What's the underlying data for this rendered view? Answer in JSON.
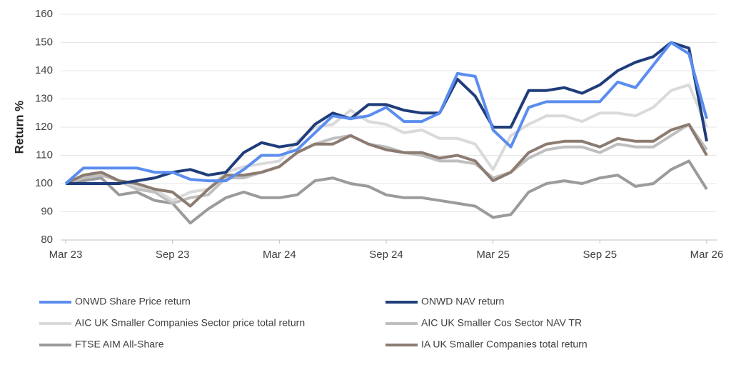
{
  "chart_data": {
    "type": "line",
    "y_label": "Return %",
    "categories": [
      "Mar 23",
      null,
      null,
      null,
      null,
      null,
      "Sep 23",
      null,
      null,
      null,
      null,
      null,
      "Mar 24",
      null,
      null,
      null,
      null,
      null,
      "Sep 24",
      null,
      null,
      null,
      null,
      null,
      "Mar 25",
      null,
      null,
      null,
      null,
      null,
      "Sep 25",
      null,
      null,
      null,
      null,
      null,
      "Mar 26"
    ],
    "ylim": [
      80,
      160
    ],
    "yticks": [
      80,
      90,
      100,
      110,
      120,
      130,
      140,
      150,
      160
    ],
    "grid": true,
    "series": [
      {
        "name": "ONWD Share Price return",
        "color": "#5b8def",
        "values": [
          100,
          105.5,
          105.5,
          105.5,
          105.5,
          104,
          104,
          101.5,
          101,
          101,
          105,
          110,
          110,
          112,
          118,
          124,
          123,
          124,
          127,
          122,
          122,
          125,
          139,
          138,
          119,
          113,
          127,
          129,
          129,
          129,
          129,
          136,
          134,
          142,
          150,
          146,
          123
        ]
      },
      {
        "name": "ONWD NAV return",
        "color": "#1f3d7a",
        "values": [
          100,
          100,
          100,
          100,
          101,
          102,
          104,
          105,
          103,
          104,
          111,
          114.5,
          113,
          114,
          121,
          125,
          123,
          128,
          128,
          126,
          125,
          125,
          137,
          131,
          120,
          120,
          133,
          133,
          134,
          132,
          135,
          140,
          143,
          145,
          150,
          148,
          115
        ]
      },
      {
        "name": "AIC UK Smaller Companies Sector price total return",
        "color": "#dadada",
        "values": [
          100,
          103,
          104,
          101,
          99,
          98,
          94,
          97,
          98,
          104,
          106,
          107,
          108,
          115,
          120,
          121,
          126,
          122,
          121,
          118,
          119,
          116,
          116,
          114,
          105,
          117,
          121,
          124,
          124,
          122,
          125,
          125,
          124,
          127,
          133,
          135,
          120
        ]
      },
      {
        "name": "AIC UK Smaller Cos Sector NAV TR",
        "color": "#bfbfbf",
        "values": [
          100,
          102,
          103,
          101,
          98,
          97,
          93,
          95,
          96,
          102,
          102,
          104,
          106,
          111,
          114,
          116,
          117,
          114,
          113,
          111,
          110,
          108,
          108,
          107,
          102,
          104,
          109,
          112,
          113,
          113,
          111,
          114,
          113,
          113,
          117,
          121,
          112
        ]
      },
      {
        "name": "FTSE AIM All-Share",
        "color": "#9b9b9b",
        "values": [
          100,
          101,
          102,
          96,
          97,
          94,
          93,
          86,
          91,
          95,
          97,
          95,
          95,
          96,
          101,
          102,
          100,
          99,
          96,
          95,
          95,
          94,
          93,
          92,
          88,
          89,
          97,
          100,
          101,
          100,
          102,
          103,
          99,
          100,
          105,
          108,
          98
        ]
      },
      {
        "name": "IA UK Smaller Companies total return",
        "color": "#8c7b70",
        "values": [
          100,
          103,
          104,
          101,
          100,
          98,
          97,
          92,
          98,
          103,
          103,
          104,
          106,
          111,
          114,
          114,
          117,
          114,
          112,
          111,
          111,
          109,
          110,
          108,
          101,
          104,
          111,
          114,
          115,
          115,
          113,
          116,
          115,
          115,
          119,
          121,
          110
        ]
      }
    ]
  }
}
